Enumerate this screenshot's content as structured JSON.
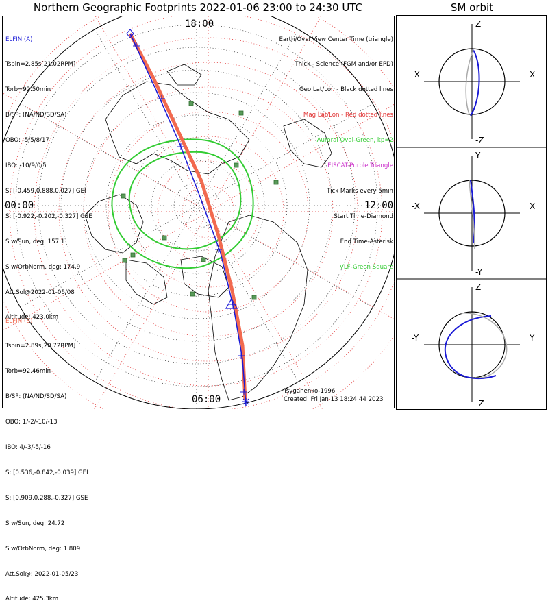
{
  "header": {
    "main_title": "Northern Geographic Footprints 2022-01-06 23:00 to 24:30 UTC",
    "sm_title": "SM orbit"
  },
  "colors": {
    "elfin_a": "#1a1ad6",
    "elfin_b": "#f26a4f",
    "aurora": "#33cc33",
    "mag_grid": "#e03030",
    "geo_grid": "#000000",
    "eiscat": "#cc33cc",
    "vlf": "#2f8f2f"
  },
  "clock_labels": {
    "top": "18:00",
    "left": "00:00",
    "right": "12:00",
    "bottom": "06:00"
  },
  "elfin_a": {
    "name": "ELFIN (A)",
    "lines": [
      "Tspin=2.85s[21.02RPM]",
      "Torb=92.50min",
      "B/SP: (NA/ND/SD/SA)",
      "OBO: -5/5/8/17",
      "IBO: -10/9/0/5",
      "S: [-0.459,0.888,0.027] GEI",
      "S: [-0.922,-0.202,-0.327] GSE",
      "S w/Sun, deg: 157.1",
      "S w/OrbNorm, deg: 174.9",
      "Att.Sol@2022-01-06/08",
      "Altitude: 423.0km"
    ]
  },
  "elfin_b": {
    "name": "ELFIN (B)",
    "lines": [
      "Tspin=2.89s[20.72RPM]",
      "Torb=92.46min",
      "B/SP: (NA/ND/SD/SA)",
      "OBO: 1/-2/-10/-13",
      "IBO: 4/-3/-5/-16",
      "S: [0.536,-0.842,-0.039] GEI",
      "S: [0.909,0.288,-0.327] GSE",
      "S w/Sun, deg: 24.72",
      "S w/OrbNorm, deg: 1.809",
      "Att.Sol@: 2022-01-05/23",
      "Altitude: 425.3km"
    ]
  },
  "legend": [
    {
      "text": "Earth/Oval View Center Time (triangle)",
      "color": "#000000"
    },
    {
      "text": "Thick - Science (FGM and/or EPD)",
      "color": "#000000"
    },
    {
      "text": "Geo Lat/Lon - Black dotted lines",
      "color": "#000000"
    },
    {
      "text": "Mag Lat/Lon - Red dotted lines",
      "color": "#e03030"
    },
    {
      "text": "Auroral Oval-Green, kp=2",
      "color": "#33cc33"
    },
    {
      "text": "EISCAT-Purple Triangle",
      "color": "#cc33cc"
    },
    {
      "text": "Tick Marks every 5min",
      "color": "#000000"
    },
    {
      "text": "Start Time-Diamond",
      "color": "#000000"
    },
    {
      "text": "End Time-Asterisk",
      "color": "#000000"
    },
    {
      "text": "VLF-Green Square",
      "color": "#33cc33"
    }
  ],
  "footer": {
    "model": "Tsyganenko-1996",
    "created": "Created: Fri Jan 13 18:24:44 2023"
  },
  "sm_panels": [
    {
      "top": "Z",
      "bottom": "-Z",
      "left": "-X",
      "right": "X"
    },
    {
      "top": "Y",
      "bottom": "-Y",
      "left": "-X",
      "right": "X"
    },
    {
      "top": "Z",
      "bottom": "-Z",
      "left": "-Y",
      "right": "Y"
    }
  ],
  "chart_data": {
    "type": "line",
    "title": "Northern Geographic Footprints 2022-01-06 23:00 to 24:30 UTC",
    "projection": "polar stereographic, north pole centered",
    "grid": true,
    "series": [
      {
        "name": "ELFIN (A)",
        "color": "#1a1ad6"
      },
      {
        "name": "ELFIN (B)",
        "color": "#f26a4f"
      }
    ],
    "vlf_stations": 11
  }
}
